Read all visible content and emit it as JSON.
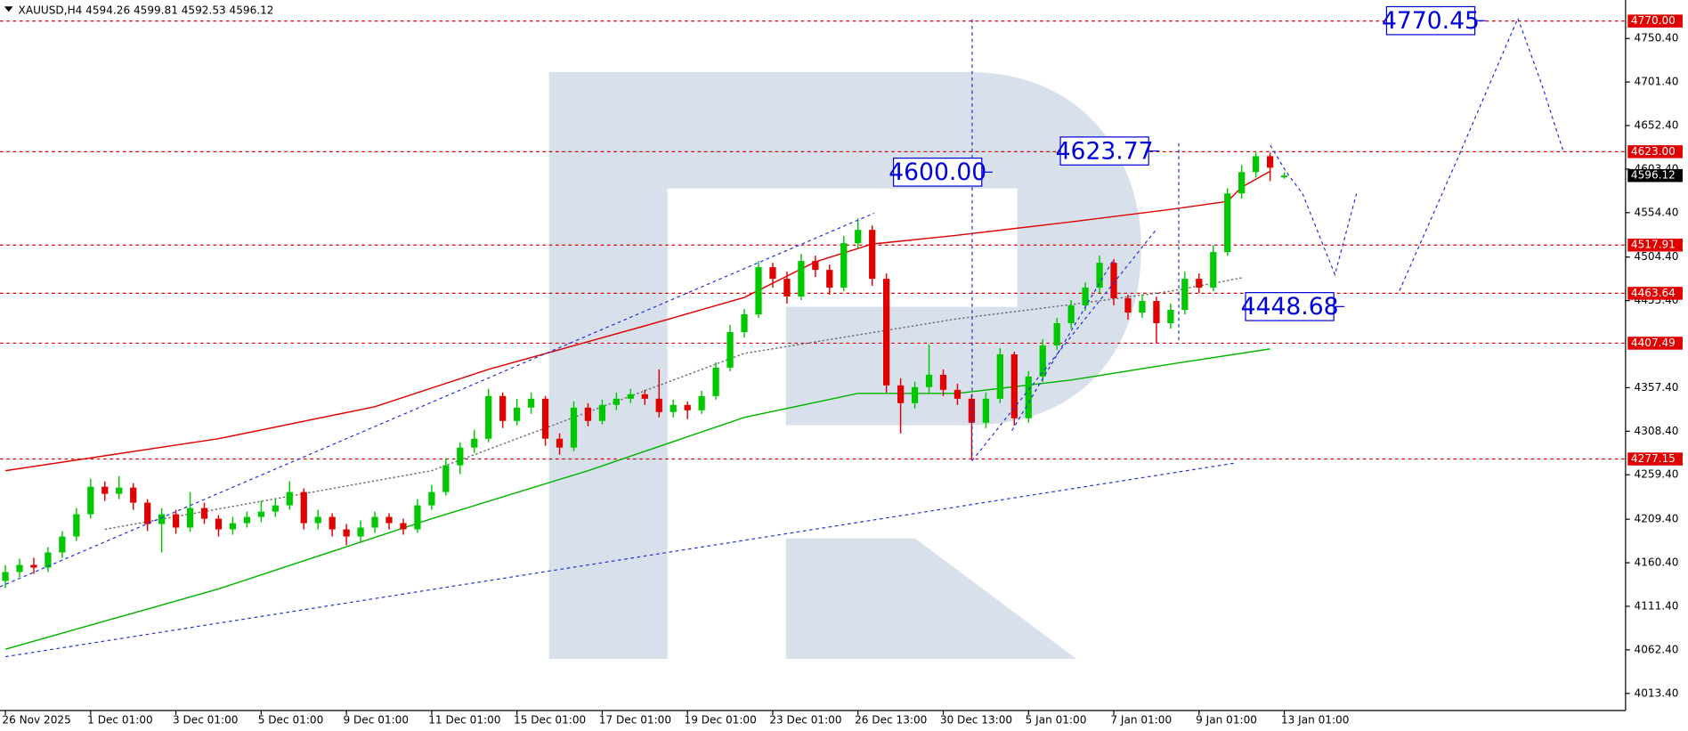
{
  "chart_data": {
    "type": "candlestick",
    "title": "XAUUSD,H4  4594.26 4599.81 4592.53 4596.12",
    "up_color": "#00c800",
    "down_color": "#e00000",
    "categories": [
      "26 Nov 2025",
      null,
      null,
      null,
      null,
      null,
      "1 Dec 01:00",
      null,
      null,
      null,
      null,
      null,
      "3 Dec 01:00",
      null,
      null,
      null,
      null,
      null,
      "5 Dec 01:00",
      null,
      null,
      null,
      null,
      null,
      "9 Dec 01:00",
      null,
      null,
      null,
      null,
      null,
      "11 Dec 01:00",
      null,
      null,
      null,
      null,
      null,
      "15 Dec 01:00",
      null,
      null,
      null,
      null,
      null,
      "17 Dec 01:00",
      null,
      null,
      null,
      null,
      null,
      "19 Dec 01:00",
      null,
      null,
      null,
      null,
      null,
      "23 Dec 01:00",
      null,
      null,
      null,
      null,
      null,
      "26 Dec 13:00",
      null,
      null,
      null,
      null,
      null,
      "30 Dec 13:00",
      null,
      null,
      null,
      null,
      null,
      "5 Jan 01:00",
      null,
      null,
      null,
      null,
      null,
      "7 Jan 01:00",
      null,
      null,
      null,
      null,
      null,
      "9 Jan 01:00",
      null,
      null,
      null,
      null,
      null,
      "13 Jan 01:00"
    ],
    "open": [
      4140,
      4150,
      4158,
      4155,
      4172,
      4190,
      4215,
      4246,
      4238,
      4245,
      4228,
      4204,
      4215,
      4200,
      4222,
      4210,
      4198,
      4205,
      4212,
      4218,
      4225,
      4240,
      4205,
      4212,
      4198,
      4190,
      4200,
      4212,
      4205,
      4198,
      4225,
      4240,
      4270,
      4290,
      4300,
      4348,
      4320,
      4335,
      4345,
      4300,
      4290,
      4335,
      4320,
      4338,
      4345,
      4350,
      4345,
      4330,
      4338,
      4332,
      4348,
      4380,
      4420,
      4440,
      4493,
      4480,
      4460,
      4500,
      4490,
      4470,
      4520,
      4535,
      4480,
      4360,
      4340,
      4358,
      4372,
      4355,
      4345,
      4318,
      4345,
      4395,
      4323,
      4370,
      4405,
      4430,
      4450,
      4470,
      4498,
      4458,
      4442,
      4455,
      4430,
      4445,
      4480,
      4470,
      4510,
      4576,
      4600,
      4618,
      4594.26
    ],
    "high": [
      4158,
      4165,
      4166,
      4178,
      4196,
      4222,
      4255,
      4252,
      4258,
      4250,
      4232,
      4222,
      4220,
      4240,
      4228,
      4214,
      4212,
      4218,
      4230,
      4232,
      4252,
      4244,
      4220,
      4216,
      4204,
      4208,
      4218,
      4216,
      4210,
      4232,
      4248,
      4278,
      4296,
      4310,
      4356,
      4352,
      4345,
      4352,
      4348,
      4306,
      4342,
      4340,
      4344,
      4352,
      4356,
      4355,
      4378,
      4344,
      4342,
      4354,
      4386,
      4428,
      4446,
      4500,
      4498,
      4488,
      4508,
      4506,
      4496,
      4528,
      4548,
      4540,
      4486,
      4368,
      4364,
      4406,
      4378,
      4362,
      4350,
      4352,
      4402,
      4398,
      4376,
      4412,
      4436,
      4456,
      4476,
      4506,
      4502,
      4462,
      4462,
      4460,
      4452,
      4488,
      4486,
      4518,
      4582,
      4608,
      4623,
      4622,
      4599.81
    ],
    "low": [
      4132,
      4144,
      4148,
      4150,
      4166,
      4185,
      4210,
      4230,
      4232,
      4220,
      4196,
      4172,
      4193,
      4195,
      4204,
      4190,
      4192,
      4200,
      4206,
      4212,
      4220,
      4198,
      4198,
      4190,
      4180,
      4184,
      4194,
      4198,
      4192,
      4194,
      4220,
      4236,
      4260,
      4284,
      4296,
      4312,
      4315,
      4328,
      4292,
      4282,
      4286,
      4314,
      4316,
      4332,
      4340,
      4338,
      4324,
      4324,
      4322,
      4328,
      4344,
      4376,
      4414,
      4436,
      4470,
      4452,
      4456,
      4482,
      4462,
      4466,
      4514,
      4472,
      4352,
      4306,
      4334,
      4352,
      4348,
      4338,
      4277.15,
      4312,
      4340,
      4315,
      4318,
      4364,
      4400,
      4424,
      4444,
      4464,
      4450,
      4434,
      4436,
      4407.49,
      4424,
      4440,
      4464,
      4466,
      4506,
      4570,
      4594,
      4590,
      4592.53
    ],
    "close": [
      4150,
      4158,
      4155,
      4172,
      4190,
      4215,
      4246,
      4238,
      4245,
      4228,
      4204,
      4215,
      4200,
      4222,
      4210,
      4198,
      4205,
      4212,
      4218,
      4225,
      4240,
      4205,
      4212,
      4198,
      4190,
      4200,
      4212,
      4205,
      4198,
      4225,
      4240,
      4270,
      4290,
      4300,
      4348,
      4320,
      4335,
      4345,
      4300,
      4290,
      4335,
      4320,
      4338,
      4345,
      4350,
      4345,
      4330,
      4338,
      4332,
      4348,
      4380,
      4420,
      4440,
      4493,
      4480,
      4460,
      4500,
      4490,
      4470,
      4520,
      4535,
      4480,
      4360,
      4340,
      4358,
      4372,
      4355,
      4345,
      4318,
      4345,
      4395,
      4323,
      4370,
      4405,
      4430,
      4450,
      4470,
      4498,
      4458,
      4442,
      4455,
      4430,
      4445,
      4480,
      4470,
      4510,
      4576,
      4600,
      4618,
      4605,
      4596.12
    ],
    "moving_averages": [
      {
        "color": "#e00000",
        "style": "solid",
        "x": [
          0,
          15,
          26,
          34,
          45,
          52,
          57,
          61,
          67,
          75,
          82,
          86,
          87,
          89
        ],
        "values": [
          4264,
          4300,
          4336,
          4378,
          4427,
          4459,
          4499,
          4519,
          4529,
          4544,
          4558,
          4567,
          4583,
          4601
        ]
      },
      {
        "color": "#00b400",
        "style": "solid",
        "x": [
          0,
          15,
          30,
          41,
          52,
          60,
          67,
          75,
          82,
          89
        ],
        "values": [
          4063,
          4131,
          4210,
          4264,
          4324,
          4351,
          4351,
          4366,
          4384,
          4401
        ]
      },
      {
        "color": "#707070",
        "style": "dotted",
        "x": [
          7,
          30,
          52,
          67,
          75,
          82,
          87
        ],
        "values": [
          4198,
          4264,
          4396,
          4435,
          4451,
          4466,
          4481
        ]
      }
    ],
    "ylim": [
      3994.1,
      4793.7
    ],
    "yticks": [
      {
        "value": 4013.4,
        "label": "4013.40"
      },
      {
        "value": 4062.4,
        "label": "4062.40"
      },
      {
        "value": 4111.4,
        "label": "4111.40"
      },
      {
        "value": 4160.4,
        "label": "4160.40"
      },
      {
        "value": 4209.4,
        "label": "4209.40"
      },
      {
        "value": 4259.4,
        "label": "4259.40"
      },
      {
        "value": 4308.4,
        "label": "4308.40"
      },
      {
        "value": 4357.4,
        "label": "4357.40"
      },
      {
        "value": 4455.4,
        "label": "4455.40"
      },
      {
        "value": 4504.4,
        "label": "4504.40"
      },
      {
        "value": 4554.4,
        "label": "4554.40"
      },
      {
        "value": 4603.4,
        "label": "4603.40"
      },
      {
        "value": 4652.4,
        "label": "4652.40"
      },
      {
        "value": 4701.4,
        "label": "4701.40"
      },
      {
        "value": 4750.4,
        "label": "4750.40"
      }
    ],
    "levels": [
      {
        "value": 4770,
        "label": "4770.00"
      },
      {
        "value": 4623,
        "label": "4623.00"
      },
      4517.91,
      4463.64,
      4407.49,
      4277.15
    ],
    "level_color": "#e00000",
    "current_price": 4596.12,
    "annotations": [
      4770.45,
      4623.77,
      {
        "value": 4600,
        "label": "4600.00"
      },
      4448.68
    ],
    "annotation_color": "#0000d8"
  }
}
